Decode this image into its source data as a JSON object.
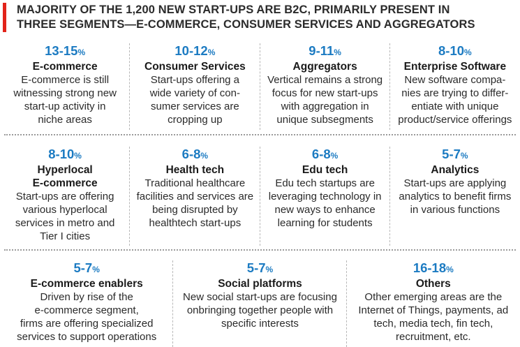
{
  "header": {
    "line1": "MAJORITY OF THE 1,200 NEW START-UPS ARE B2C, PRIMARILY PRESENT IN",
    "line2": "THREE SEGMENTS—E-COMMERCE, CONSUMER SERVICES AND AGGREGATORS",
    "accent_color": "#e2231a"
  },
  "colors": {
    "percent": "#1c7bc2",
    "text": "#1a1a1a"
  },
  "segments": [
    {
      "range": "13-15",
      "unit": "%",
      "title": [
        "E-commerce"
      ],
      "desc": [
        "E-commerce is still",
        "witnessing strong new",
        "start-up activity in",
        "niche areas"
      ]
    },
    {
      "range": "10-12",
      "unit": "%",
      "title": [
        "Consumer Services"
      ],
      "desc": [
        "Start-ups offering a",
        "wide variety of con-",
        "sumer services are",
        "cropping up"
      ]
    },
    {
      "range": "9-11",
      "unit": "%",
      "title": [
        "Aggregators"
      ],
      "desc": [
        "Vertical remains a strong",
        "focus for new start-ups",
        "with aggregation in",
        "unique subsegments"
      ]
    },
    {
      "range": "8-10",
      "unit": "%",
      "title": [
        "Enterprise Software"
      ],
      "desc": [
        "New software compa-",
        "nies are trying to differ-",
        "entiate with unique",
        "product/service offerings"
      ]
    },
    {
      "range": "8-10",
      "unit": "%",
      "title": [
        "Hyperlocal",
        "E-commerce"
      ],
      "desc": [
        "Start-ups are offering",
        "various hyperlocal",
        "services in metro and",
        "Tier I cities"
      ]
    },
    {
      "range": "6-8",
      "unit": "%",
      "title": [
        "Health tech"
      ],
      "desc": [
        "Traditional healthcare",
        "facilities and services are",
        "being disrupted by",
        "healthtech start-ups"
      ]
    },
    {
      "range": "6-8",
      "unit": "%",
      "title": [
        "Edu tech"
      ],
      "desc": [
        "Edu tech startups are",
        "leveraging technology in",
        "new ways to enhance",
        "learning for students"
      ]
    },
    {
      "range": "5-7",
      "unit": "%",
      "title": [
        "Analytics"
      ],
      "desc": [
        "Start-ups are applying",
        "analytics to benefit firms",
        "in various functions"
      ]
    },
    {
      "range": "5-7",
      "unit": "%",
      "title": [
        "E-commerce enablers"
      ],
      "desc": [
        "Driven by rise of the",
        "e-commerce segment,",
        "firms are offering specialized",
        "services to support operations"
      ]
    },
    {
      "range": "5-7",
      "unit": "%",
      "title": [
        "Social platforms"
      ],
      "desc": [
        "New social start-ups are focusing",
        "onbringing together people with",
        "specific interests"
      ]
    },
    {
      "range": "16-18",
      "unit": "%",
      "title": [
        "Others"
      ],
      "desc": [
        "Other emerging areas are the",
        "Internet of Things, payments, ad",
        "tech, media tech, fin tech,",
        "recruitment, etc."
      ]
    }
  ]
}
